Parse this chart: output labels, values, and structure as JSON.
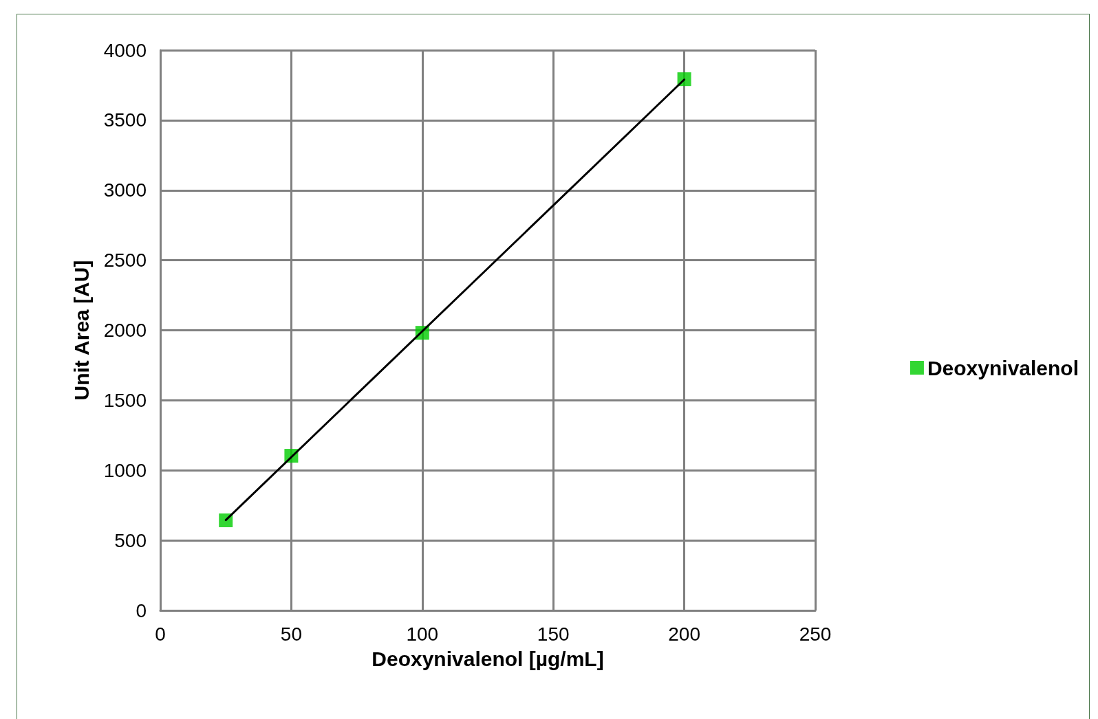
{
  "chart_data": {
    "type": "scatter",
    "xlabel": "Deoxynivalenol [µg/mL]",
    "ylabel": "Unit Area [AU]",
    "series": [
      {
        "name": "Deoxynivalenol",
        "color": "#00cc00",
        "x": [
          25,
          50,
          100,
          200
        ],
        "values": [
          643,
          1104,
          1982,
          3793
        ]
      },
      {
        "type": "line",
        "color": "#000000",
        "marker": "none",
        "x": [
          25,
          200
        ],
        "values": [
          645,
          3790
        ]
      }
    ],
    "xlim": [
      0,
      250
    ],
    "xticks": [
      0,
      50,
      100,
      150,
      200,
      250
    ],
    "ylim": [
      0,
      4000
    ],
    "yticks": [
      0,
      500,
      1000,
      1500,
      2000,
      2500,
      3000,
      3500,
      4000
    ],
    "grid": true,
    "legend": "right",
    "marker": "square"
  }
}
